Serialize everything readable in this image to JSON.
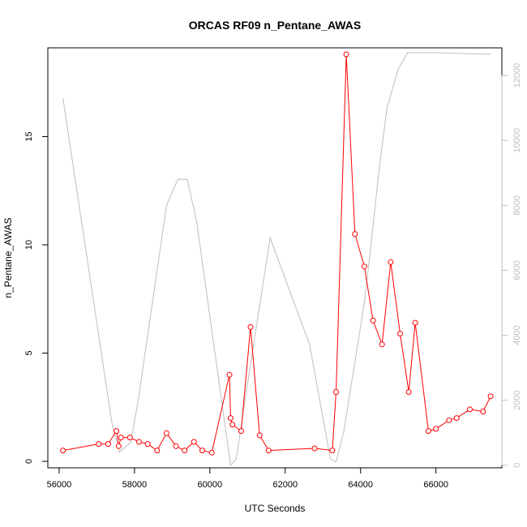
{
  "chart_data": {
    "type": "line",
    "title": "ORCAS RF09 n_Pentane_AWAS",
    "xlabel": "UTC Seconds",
    "ylabel": "n_Pentane_AWAS",
    "xlim": [
      55700,
      67750
    ],
    "ylim": [
      -0.3,
      19.1
    ],
    "y2lim": [
      -80,
      12850
    ],
    "x_ticks": [
      56000,
      58000,
      60000,
      62000,
      64000,
      66000
    ],
    "y_ticks": [
      0,
      5,
      10,
      15
    ],
    "y2_ticks": [
      0,
      2000,
      4000,
      6000,
      8000,
      10000,
      12000
    ],
    "series": [
      {
        "color": "#ff0000",
        "axis": "left",
        "style": "line+points",
        "points": [
          [
            56100,
            0.5
          ],
          [
            57050,
            0.8
          ],
          [
            57300,
            0.8
          ],
          [
            57520,
            1.4
          ],
          [
            57580,
            0.7
          ],
          [
            57640,
            1.1
          ],
          [
            57880,
            1.1
          ],
          [
            58120,
            0.9
          ],
          [
            58350,
            0.8
          ],
          [
            58600,
            0.5
          ],
          [
            58850,
            1.3
          ],
          [
            59100,
            0.7
          ],
          [
            59330,
            0.5
          ],
          [
            59580,
            0.9
          ],
          [
            59800,
            0.5
          ],
          [
            60050,
            0.4
          ],
          [
            60520,
            4.0
          ],
          [
            60550,
            2.0
          ],
          [
            60600,
            1.7
          ],
          [
            60830,
            1.4
          ],
          [
            61080,
            6.2
          ],
          [
            61320,
            1.2
          ],
          [
            61560,
            0.5
          ],
          [
            62780,
            0.6
          ],
          [
            63250,
            0.5
          ],
          [
            63350,
            3.2
          ],
          [
            63620,
            18.8
          ],
          [
            63850,
            10.5
          ],
          [
            64100,
            9.0
          ],
          [
            64330,
            6.5
          ],
          [
            64570,
            5.4
          ],
          [
            64800,
            9.2
          ],
          [
            65050,
            5.9
          ],
          [
            65280,
            3.2
          ],
          [
            65450,
            6.4
          ],
          [
            65800,
            1.4
          ],
          [
            66000,
            1.5
          ],
          [
            66350,
            1.9
          ],
          [
            66550,
            2.0
          ],
          [
            66900,
            2.4
          ],
          [
            67250,
            2.3
          ],
          [
            67450,
            3.0
          ]
        ]
      },
      {
        "color": "#bebebe",
        "axis": "right",
        "style": "line",
        "points": [
          [
            56100,
            11300
          ],
          [
            57400,
            1300
          ],
          [
            57600,
            400
          ],
          [
            57900,
            700
          ],
          [
            58100,
            2000
          ],
          [
            58850,
            8000
          ],
          [
            59150,
            8800
          ],
          [
            59400,
            8800
          ],
          [
            59650,
            7500
          ],
          [
            60550,
            0
          ],
          [
            60700,
            200
          ],
          [
            61000,
            2500
          ],
          [
            61600,
            7000
          ],
          [
            62650,
            3700
          ],
          [
            63200,
            200
          ],
          [
            63350,
            100
          ],
          [
            63550,
            1000
          ],
          [
            64100,
            5000
          ],
          [
            64250,
            6500
          ],
          [
            64500,
            9200
          ],
          [
            64700,
            11000
          ],
          [
            65000,
            12200
          ],
          [
            65250,
            12700
          ],
          [
            65600,
            12700
          ],
          [
            66000,
            12700
          ],
          [
            67450,
            12650
          ]
        ]
      }
    ]
  }
}
